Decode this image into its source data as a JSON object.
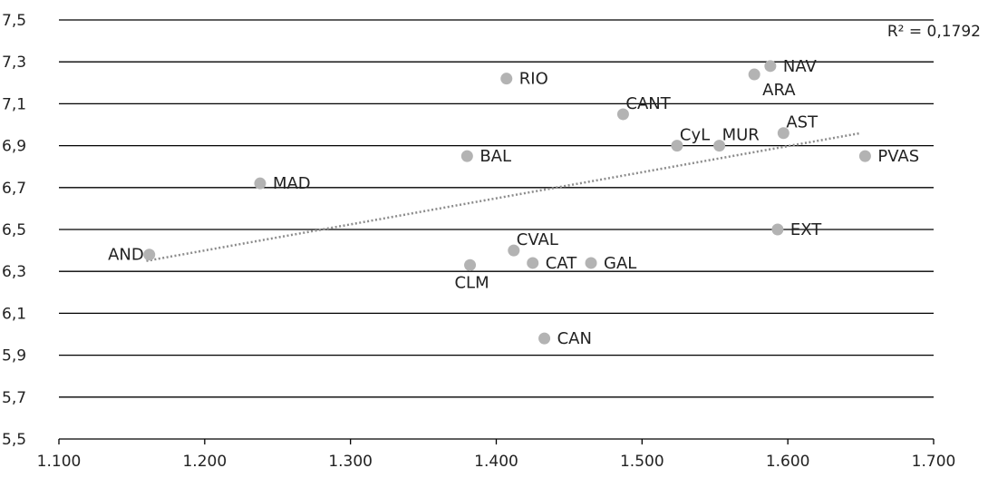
{
  "chart_data": {
    "type": "scatter",
    "title": "",
    "xlabel": "",
    "ylabel": "",
    "xlim": [
      1100,
      1700
    ],
    "ylim": [
      5.5,
      7.5
    ],
    "x_ticks": [
      1100,
      1200,
      1300,
      1400,
      1500,
      1600,
      1700
    ],
    "x_tick_labels": [
      "1.100",
      "1.200",
      "1.300",
      "1.400",
      "1.500",
      "1.600",
      "1.700"
    ],
    "y_ticks": [
      5.5,
      5.7,
      5.9,
      6.1,
      6.3,
      6.5,
      6.7,
      6.9,
      7.1,
      7.3,
      7.5
    ],
    "y_tick_labels": [
      "5,5",
      "5,7",
      "5,9",
      "6,1",
      "6,3",
      "6,5",
      "6,7",
      "6,9",
      "7,1",
      "7,3",
      "7,5"
    ],
    "grid": "horizontal",
    "marker_color": "#b3b3b3",
    "trendline_color": "#8c8c8c",
    "points": [
      {
        "label": "AND",
        "x": 1162,
        "y": 6.38,
        "label_pos": "left"
      },
      {
        "label": "MAD",
        "x": 1238,
        "y": 6.72,
        "label_pos": "right"
      },
      {
        "label": "BAL",
        "x": 1380,
        "y": 6.85,
        "label_pos": "right"
      },
      {
        "label": "CLM",
        "x": 1382,
        "y": 6.33,
        "label_pos": "below"
      },
      {
        "label": "RIO",
        "x": 1407,
        "y": 7.22,
        "label_pos": "right"
      },
      {
        "label": "CVAL",
        "x": 1412,
        "y": 6.4,
        "label_pos": "above-right"
      },
      {
        "label": "CAT",
        "x": 1425,
        "y": 6.34,
        "label_pos": "right"
      },
      {
        "label": "CAN",
        "x": 1433,
        "y": 5.98,
        "label_pos": "right"
      },
      {
        "label": "GAL",
        "x": 1465,
        "y": 6.34,
        "label_pos": "right"
      },
      {
        "label": "CANT",
        "x": 1487,
        "y": 7.05,
        "label_pos": "above-right"
      },
      {
        "label": "CyL",
        "x": 1524,
        "y": 6.9,
        "label_pos": "above-right"
      },
      {
        "label": "MUR",
        "x": 1553,
        "y": 6.9,
        "label_pos": "above-right"
      },
      {
        "label": "ARA",
        "x": 1577,
        "y": 7.24,
        "label_pos": "below-right"
      },
      {
        "label": "NAV",
        "x": 1588,
        "y": 7.28,
        "label_pos": "right"
      },
      {
        "label": "EXT",
        "x": 1593,
        "y": 6.5,
        "label_pos": "right"
      },
      {
        "label": "AST",
        "x": 1597,
        "y": 6.96,
        "label_pos": "above-right"
      },
      {
        "label": "PVAS",
        "x": 1653,
        "y": 6.85,
        "label_pos": "right"
      }
    ],
    "trendline": {
      "type": "linear",
      "x_start": 1160,
      "y_start": 6.35,
      "x_end": 1650,
      "y_end": 6.96,
      "r2_label": "R² = 0,1792"
    }
  }
}
